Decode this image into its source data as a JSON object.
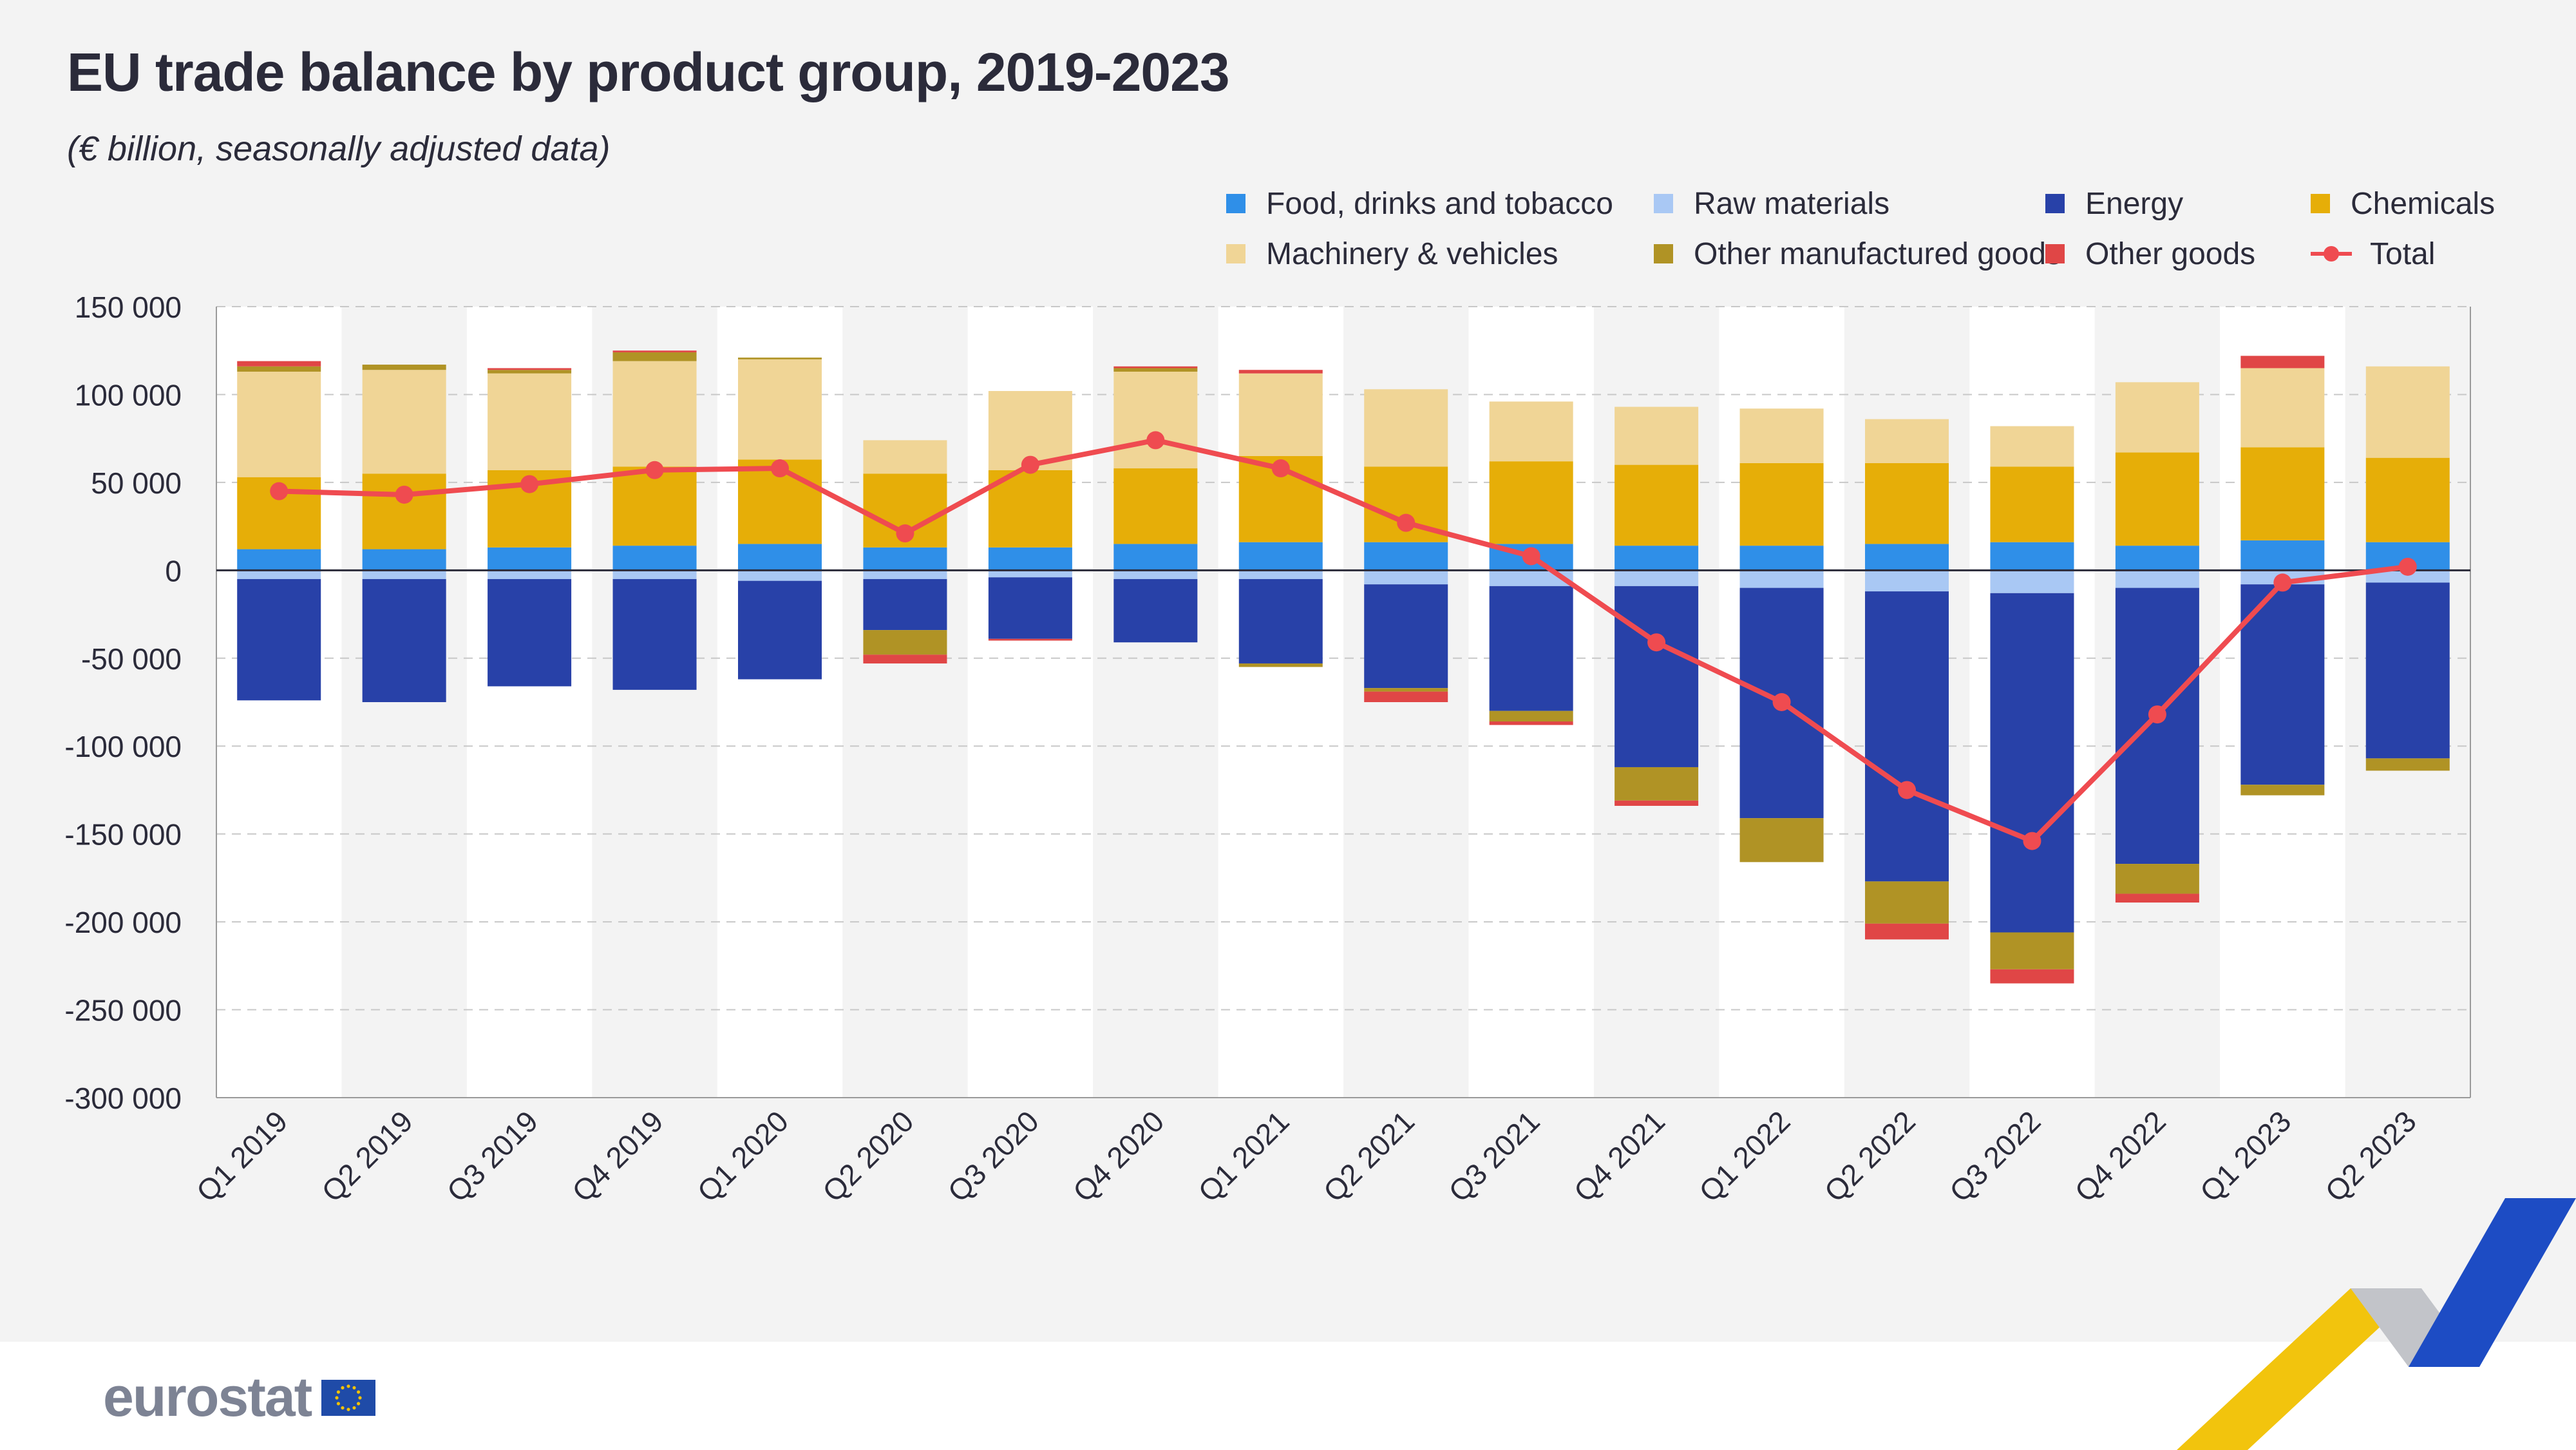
{
  "title": "EU trade balance by product group, 2019-2023",
  "subtitle": "(€ billion, seasonally adjusted data)",
  "logo": {
    "text": "eurostat",
    "flag_icon": "eu-flag-icon"
  },
  "colors": {
    "food": "#2f8fe8",
    "raw": "#a9c8f4",
    "energy": "#2841a8",
    "chemicals": "#e6ae08",
    "machinery": "#f0d596",
    "other_manufactured": "#b09325",
    "other_goods": "#e04646",
    "total": "#ef4b50",
    "axis_text": "#2b2b3a",
    "panel_bg": "#f3f3f3",
    "band_bg": "#ffffff"
  },
  "chart_data": {
    "type": "bar",
    "stacked": true,
    "title": "EU trade balance by product group, 2019-2023",
    "subtitle": "(€ billion, seasonally adjusted data)",
    "xlabel": "",
    "ylabel": "",
    "ylim": [
      -300000,
      150000
    ],
    "yticks": [
      150000,
      100000,
      50000,
      0,
      -50000,
      -100000,
      -150000,
      -200000,
      -250000,
      -300000
    ],
    "ytick_labels": [
      "150 000",
      "100 000",
      "50 000",
      "0",
      "-50 000",
      "-100 000",
      "-150 000",
      "-200 000",
      "-250 000",
      "-300 000"
    ],
    "grid": true,
    "legend_position": "top-right",
    "categories": [
      "Q1 2019",
      "Q2 2019",
      "Q3 2019",
      "Q4 2019",
      "Q1 2020",
      "Q2 2020",
      "Q3 2020",
      "Q4 2020",
      "Q1 2021",
      "Q2 2021",
      "Q3 2021",
      "Q4 2021",
      "Q1 2022",
      "Q2 2022",
      "Q3 2022",
      "Q4 2022",
      "Q1 2023",
      "Q2 2023"
    ],
    "series": [
      {
        "key": "food",
        "name": "Food, drinks and tobacco",
        "values": [
          12000,
          12000,
          13000,
          14000,
          15000,
          13000,
          13000,
          15000,
          16000,
          16000,
          15000,
          14000,
          14000,
          15000,
          16000,
          14000,
          17000,
          16000
        ]
      },
      {
        "key": "raw",
        "name": "Raw materials",
        "values": [
          -5000,
          -5000,
          -5000,
          -5000,
          -6000,
          -5000,
          -4000,
          -5000,
          -5000,
          -8000,
          -9000,
          -9000,
          -10000,
          -12000,
          -13000,
          -10000,
          -8000,
          -7000
        ]
      },
      {
        "key": "energy",
        "name": "Energy",
        "values": [
          -69000,
          -70000,
          -61000,
          -63000,
          -56000,
          -29000,
          -35000,
          -36000,
          -48000,
          -59000,
          -71000,
          -103000,
          -131000,
          -165000,
          -193000,
          -157000,
          -114000,
          -100000
        ]
      },
      {
        "key": "chemicals",
        "name": "Chemicals",
        "values": [
          41000,
          43000,
          44000,
          45000,
          48000,
          42000,
          44000,
          43000,
          49000,
          43000,
          47000,
          46000,
          47000,
          46000,
          43000,
          53000,
          53000,
          48000
        ]
      },
      {
        "key": "machinery",
        "name": "Machinery & vehicles",
        "values": [
          60000,
          59000,
          55000,
          60000,
          57000,
          19000,
          45000,
          55000,
          47000,
          44000,
          34000,
          33000,
          31000,
          25000,
          23000,
          40000,
          45000,
          52000
        ]
      },
      {
        "key": "other_manufactured",
        "name": "Other manufactured goods",
        "values": [
          3000,
          3000,
          2000,
          5000,
          1000,
          -14000,
          0,
          2000,
          -2000,
          -2000,
          -6000,
          -19000,
          -25000,
          -24000,
          -21000,
          -17000,
          -6000,
          -7000
        ]
      },
      {
        "key": "other_goods",
        "name": "Other goods",
        "values": [
          3000,
          0,
          1000,
          1000,
          0,
          -5000,
          -1000,
          1000,
          2000,
          -6000,
          -2000,
          -3000,
          0,
          -9000,
          -8000,
          -5000,
          7000,
          0
        ]
      }
    ],
    "line_series": {
      "key": "total",
      "name": "Total",
      "values": [
        45000,
        43000,
        49000,
        57000,
        58000,
        21000,
        60000,
        74000,
        58000,
        27000,
        8000,
        -41000,
        -75000,
        -125000,
        -154000,
        -82000,
        -7000,
        2000
      ]
    }
  }
}
